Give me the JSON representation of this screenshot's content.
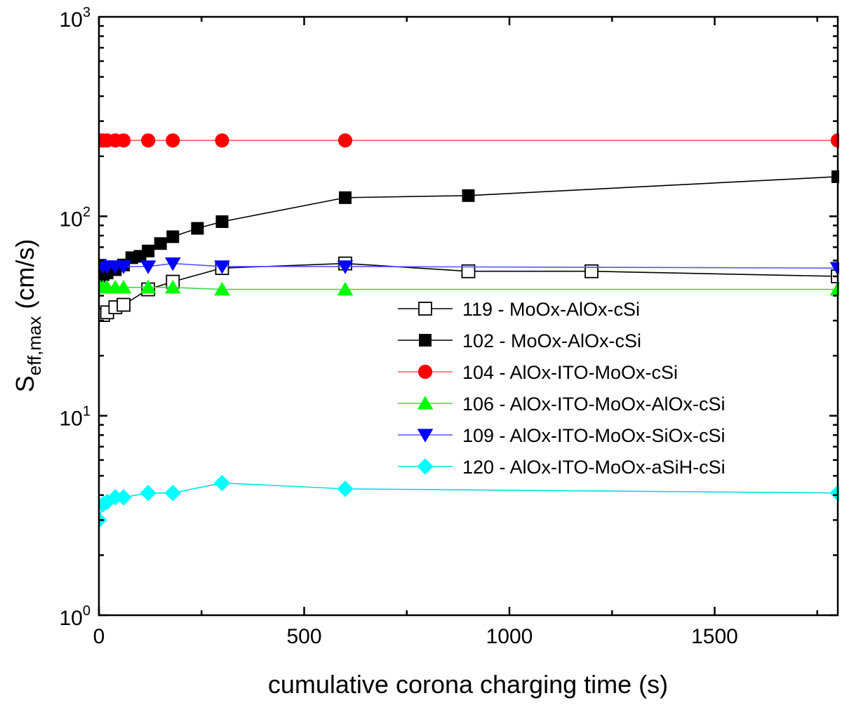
{
  "chart_data": {
    "type": "scatter",
    "title": "",
    "xlabel": "cumulative corona charging time (s)",
    "ylabel": {
      "base": "S",
      "subscript": "eff,max",
      "suffix": " (cm/s)"
    },
    "xlim": [
      0,
      1800
    ],
    "ylim": [
      1,
      1000
    ],
    "yscale": "log",
    "x_ticks": [
      0,
      500,
      1000,
      1500
    ],
    "x_tick_labels": [
      "0",
      "500",
      "1000",
      "1500"
    ],
    "y_ticks": [
      {
        "value": 1,
        "base": "10",
        "exp": "0"
      },
      {
        "value": 10,
        "base": "10",
        "exp": "1"
      },
      {
        "value": 100,
        "base": "10",
        "exp": "2"
      },
      {
        "value": 1000,
        "base": "10",
        "exp": "3"
      }
    ],
    "legend_position": "center-right",
    "series": [
      {
        "name": "119 - MoOx-AlOx-cSi",
        "marker": "square-open",
        "color": "#000000",
        "line_color": "#000000",
        "x": [
          0,
          10,
          20,
          40,
          60,
          120,
          180,
          300,
          600,
          900,
          1200,
          1800
        ],
        "y": [
          32,
          32,
          33,
          35,
          36,
          43,
          47,
          55,
          58,
          53,
          53,
          50
        ]
      },
      {
        "name": "102 - MoOx-AlOx-cSi",
        "marker": "square",
        "color": "#000000",
        "line_color": "#000000",
        "x": [
          0,
          10,
          20,
          40,
          60,
          80,
          100,
          120,
          150,
          180,
          240,
          300,
          600,
          900,
          1800
        ],
        "y": [
          50,
          51,
          52,
          54,
          57,
          62,
          63,
          67,
          73,
          79,
          87,
          94,
          124,
          127,
          158
        ]
      },
      {
        "name": "104 - AlOx-ITO-MoOx-cSi",
        "marker": "circle",
        "color": "#ff0000",
        "line_color": "#ff5c5c",
        "x": [
          0,
          10,
          20,
          40,
          60,
          120,
          180,
          300,
          600,
          1800
        ],
        "y": [
          240,
          240,
          240,
          240,
          240,
          240,
          240,
          240,
          240,
          240
        ]
      },
      {
        "name": "106 - AlOx-ITO-MoOx-AlOx-cSi",
        "marker": "triangle-up",
        "color": "#00ff00",
        "line_color": "#3ddc3d",
        "x": [
          0,
          10,
          20,
          40,
          60,
          120,
          180,
          300,
          600,
          1800
        ],
        "y": [
          45,
          44,
          44,
          44,
          44,
          44,
          44,
          43,
          43,
          43
        ]
      },
      {
        "name": "109 - AlOx-ITO-MoOx-SiOx-cSi",
        "marker": "triangle-down",
        "color": "#0000ff",
        "line_color": "#5555ff",
        "x": [
          0,
          10,
          20,
          40,
          60,
          120,
          180,
          300,
          600,
          1800
        ],
        "y": [
          57,
          56,
          56,
          56,
          56,
          56,
          58,
          56,
          56,
          55
        ]
      },
      {
        "name": "120 - AlOx-ITO-MoOx-aSiH-cSi",
        "marker": "diamond",
        "color": "#00ffff",
        "line_color": "#00e0e0",
        "x": [
          0,
          10,
          20,
          40,
          60,
          120,
          180,
          300,
          600,
          1800
        ],
        "y": [
          3.0,
          3.6,
          3.7,
          3.9,
          3.9,
          4.1,
          4.1,
          4.6,
          4.3,
          4.1
        ]
      }
    ]
  }
}
